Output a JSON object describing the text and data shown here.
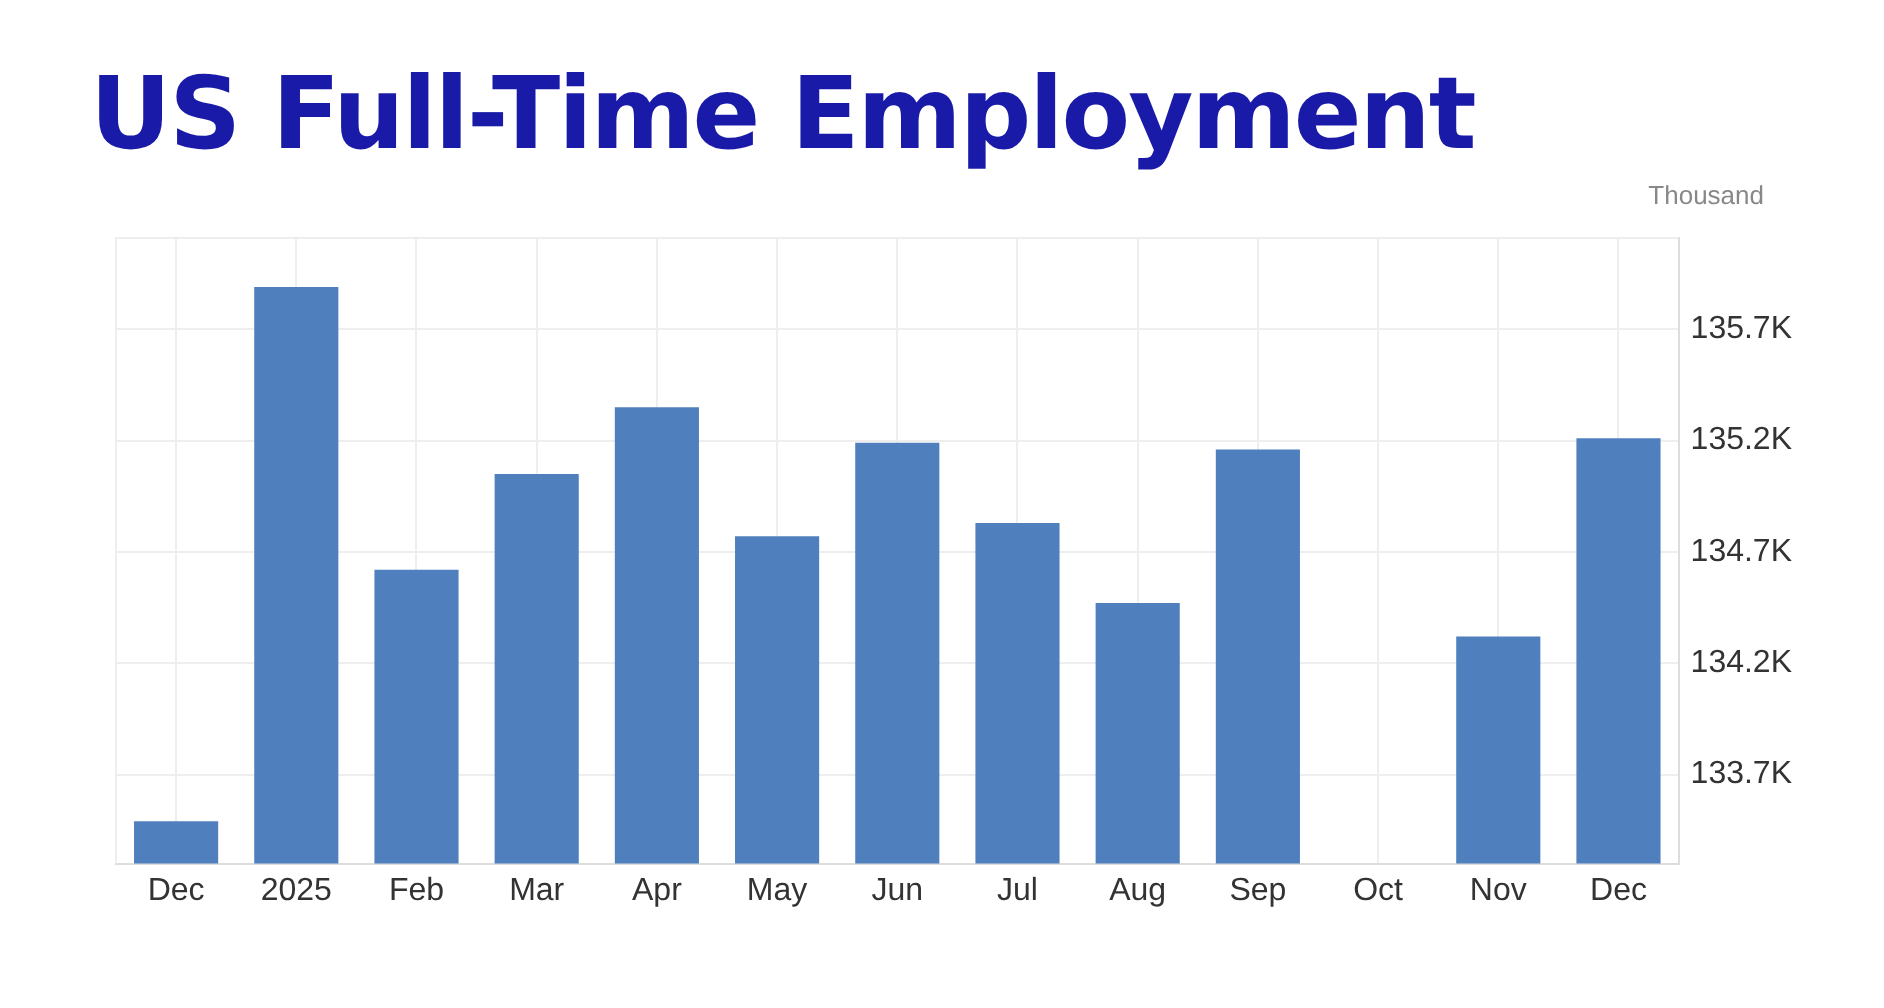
{
  "chart_data": {
    "type": "bar",
    "title": "US Full-Time Employment",
    "ylabel": "Thousand",
    "categories": [
      "Dec",
      "2025",
      "Feb",
      "Mar",
      "Apr",
      "May",
      "Jun",
      "Jul",
      "Aug",
      "Sep",
      "Oct",
      "Nov",
      "Dec"
    ],
    "values": [
      133490,
      135890,
      134620,
      135050,
      135350,
      134770,
      135190,
      134830,
      134470,
      135160,
      null,
      134320,
      135210
    ],
    "color": "#4f80bd",
    "ylim": [
      133300,
      136110
    ],
    "yticks": [
      {
        "value": 133700,
        "label": "133.7K"
      },
      {
        "value": 134200,
        "label": "134.2K"
      },
      {
        "value": 134700,
        "label": "134.7K"
      },
      {
        "value": 135200,
        "label": "135.2K"
      },
      {
        "value": 135700,
        "label": "135.7K"
      }
    ],
    "grid": true,
    "legend": false
  }
}
